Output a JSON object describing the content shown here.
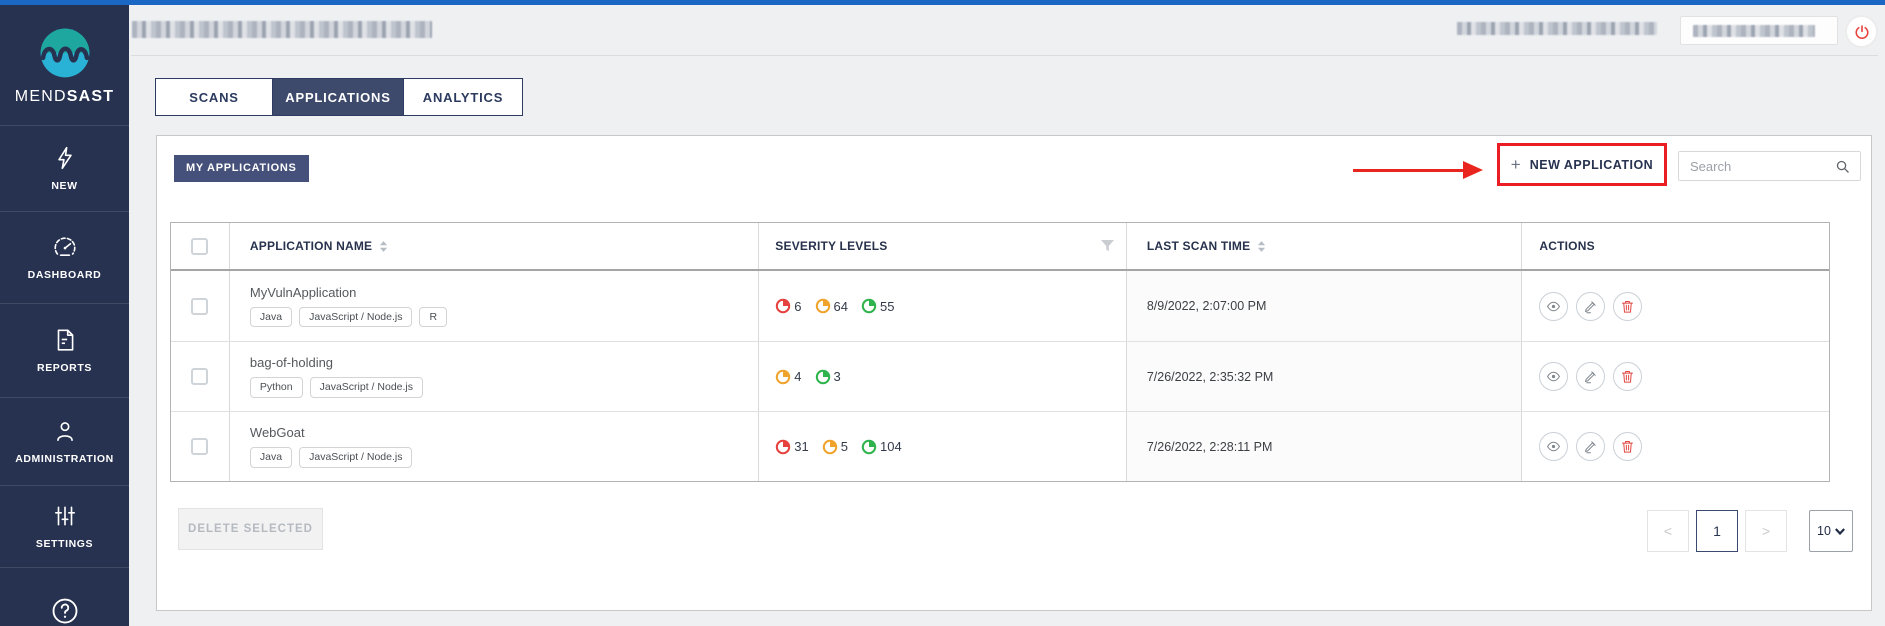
{
  "brand": {
    "mend": "MEND",
    "sast": "SAST"
  },
  "sidebar": {
    "items": [
      {
        "label": "NEW",
        "icon": "lightning-icon"
      },
      {
        "label": "DASHBOARD",
        "icon": "gauge-icon"
      },
      {
        "label": "REPORTS",
        "icon": "document-icon"
      },
      {
        "label": "ADMINISTRATION",
        "icon": "user-icon"
      },
      {
        "label": "SETTINGS",
        "icon": "sliders-icon"
      }
    ]
  },
  "tabs": [
    {
      "label": "SCANS",
      "active": false
    },
    {
      "label": "APPLICATIONS",
      "active": true
    },
    {
      "label": "ANALYTICS",
      "active": false
    }
  ],
  "toolbar": {
    "section_label": "MY APPLICATIONS",
    "plus_sign": "+",
    "new_application_label": "NEW APPLICATION",
    "search_placeholder": "Search"
  },
  "table": {
    "columns": [
      "APPLICATION NAME",
      "SEVERITY LEVELS",
      "LAST SCAN TIME",
      "ACTIONS"
    ],
    "rows": [
      {
        "name": "MyVulnApplication",
        "tags": [
          "Java",
          "JavaScript / Node.js",
          "R"
        ],
        "severities": [
          {
            "level": "high",
            "count": 6
          },
          {
            "level": "medium",
            "count": 64
          },
          {
            "level": "low",
            "count": 55
          }
        ],
        "last_scan_time": "8/9/2022, 2:07:00 PM"
      },
      {
        "name": "bag-of-holding",
        "tags": [
          "Python",
          "JavaScript / Node.js"
        ],
        "severities": [
          {
            "level": "medium",
            "count": 4
          },
          {
            "level": "low",
            "count": 3
          }
        ],
        "last_scan_time": "7/26/2022, 2:35:32 PM"
      },
      {
        "name": "WebGoat",
        "tags": [
          "Java",
          "JavaScript / Node.js"
        ],
        "severities": [
          {
            "level": "high",
            "count": 31
          },
          {
            "level": "medium",
            "count": 5
          },
          {
            "level": "low",
            "count": 104
          }
        ],
        "last_scan_time": "7/26/2022, 2:28:11 PM"
      }
    ]
  },
  "footer": {
    "delete_selected_label": "DELETE SELECTED",
    "pagination": {
      "prev": "<",
      "current_page": "1",
      "next": ">",
      "page_size": "10"
    }
  },
  "colors": {
    "topbar_blue": "#1a67c4",
    "sidebar_navy": "#273250",
    "accent_navy": "#45517a",
    "active_tab_navy": "#3d4a6c",
    "highlight_red": "#ea1c24",
    "severity_high": "#e5413e",
    "severity_medium": "#efa32b",
    "severity_low": "#2fb34c"
  }
}
